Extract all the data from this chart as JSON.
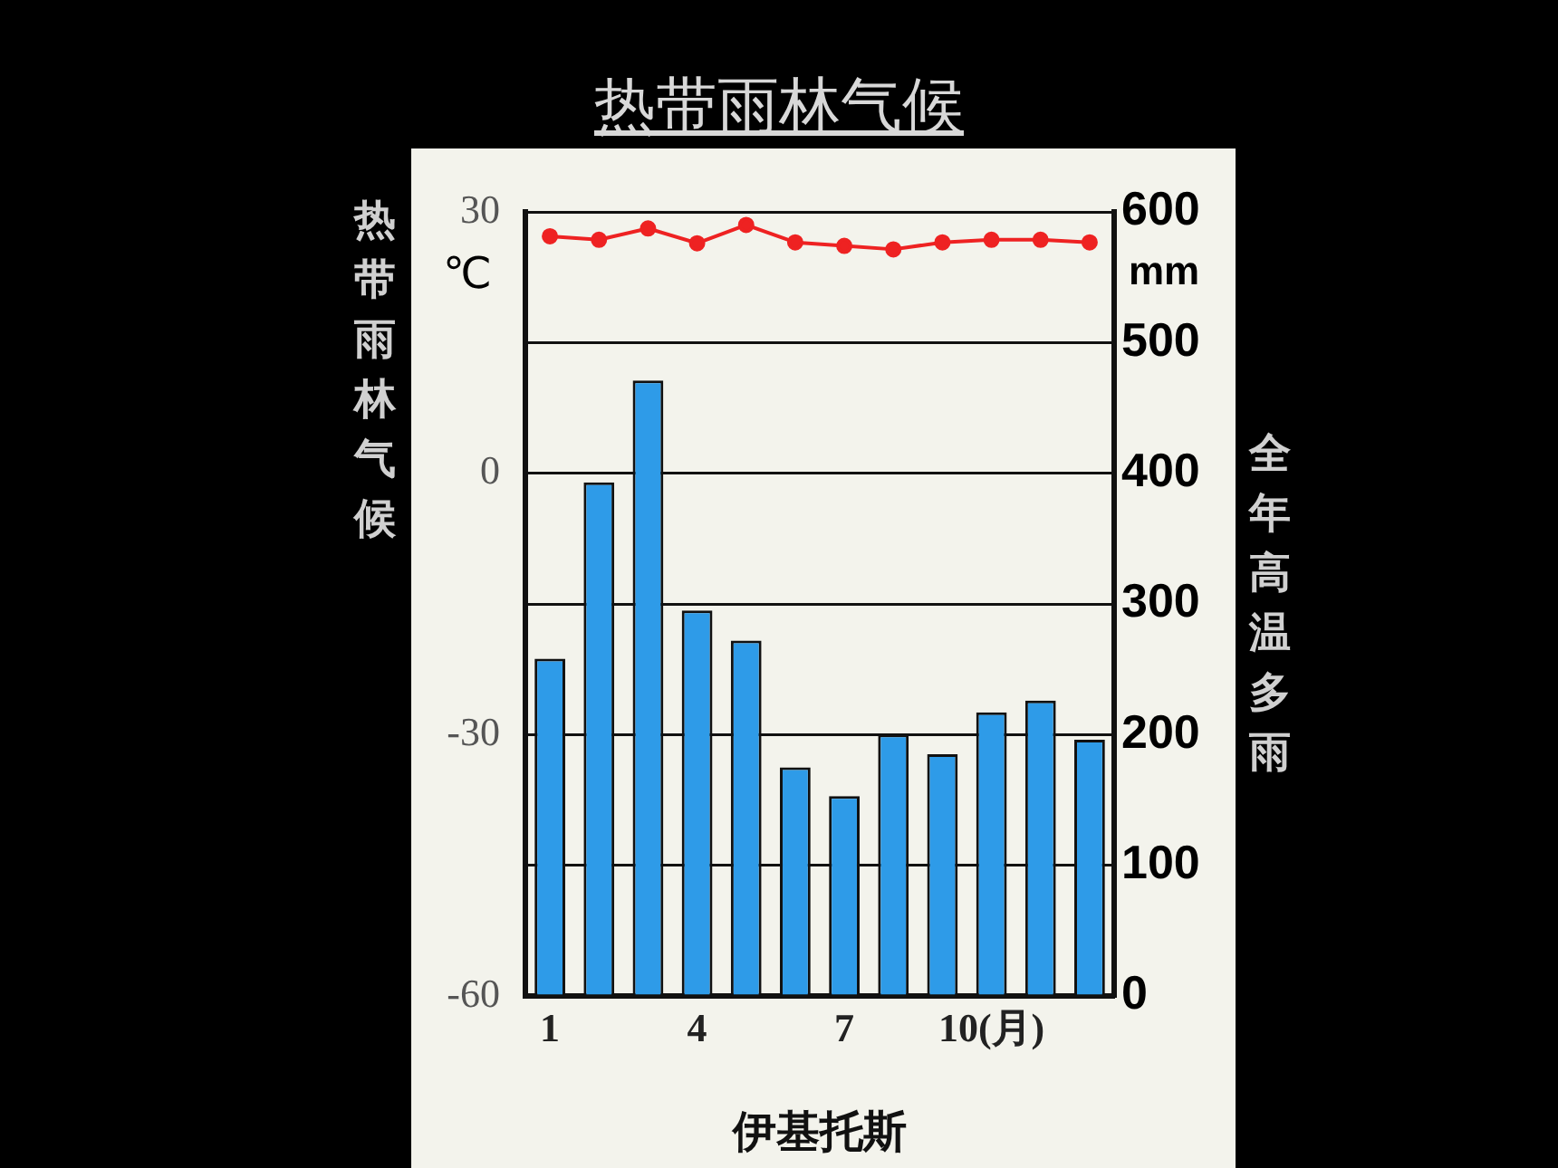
{
  "chart_data": {
    "type": "bar",
    "title": "热带雨林气候",
    "xlabel": "伊基托斯",
    "ylabel": "℃",
    "y2label": "mm",
    "annotations": [
      "热带雨林气候",
      "全年高温多雨"
    ],
    "categories": [
      "1",
      null,
      null,
      "4",
      null,
      null,
      "7",
      null,
      null,
      "10(月)",
      null,
      null
    ],
    "series": [
      {
        "axis": "y2",
        "color": "#2e9be8",
        "values": [
          258,
          393,
          471,
          295,
          272,
          175,
          153,
          200,
          185,
          217,
          226,
          196
        ]
      },
      {
        "type": "line",
        "axis": "y",
        "color": "#ee2222",
        "marker": "circle",
        "values": [
          27.2,
          26.8,
          28.1,
          26.4,
          28.5,
          26.5,
          26.1,
          25.7,
          26.5,
          26.8,
          26.8,
          26.5
        ]
      }
    ],
    "ylim": [
      -60,
      30
    ],
    "yticks": [
      -60,
      -30,
      0,
      30
    ],
    "y2lim": [
      0,
      600
    ],
    "y2ticks": [
      0,
      100,
      200,
      300,
      400,
      500,
      600
    ],
    "grid": "y"
  }
}
